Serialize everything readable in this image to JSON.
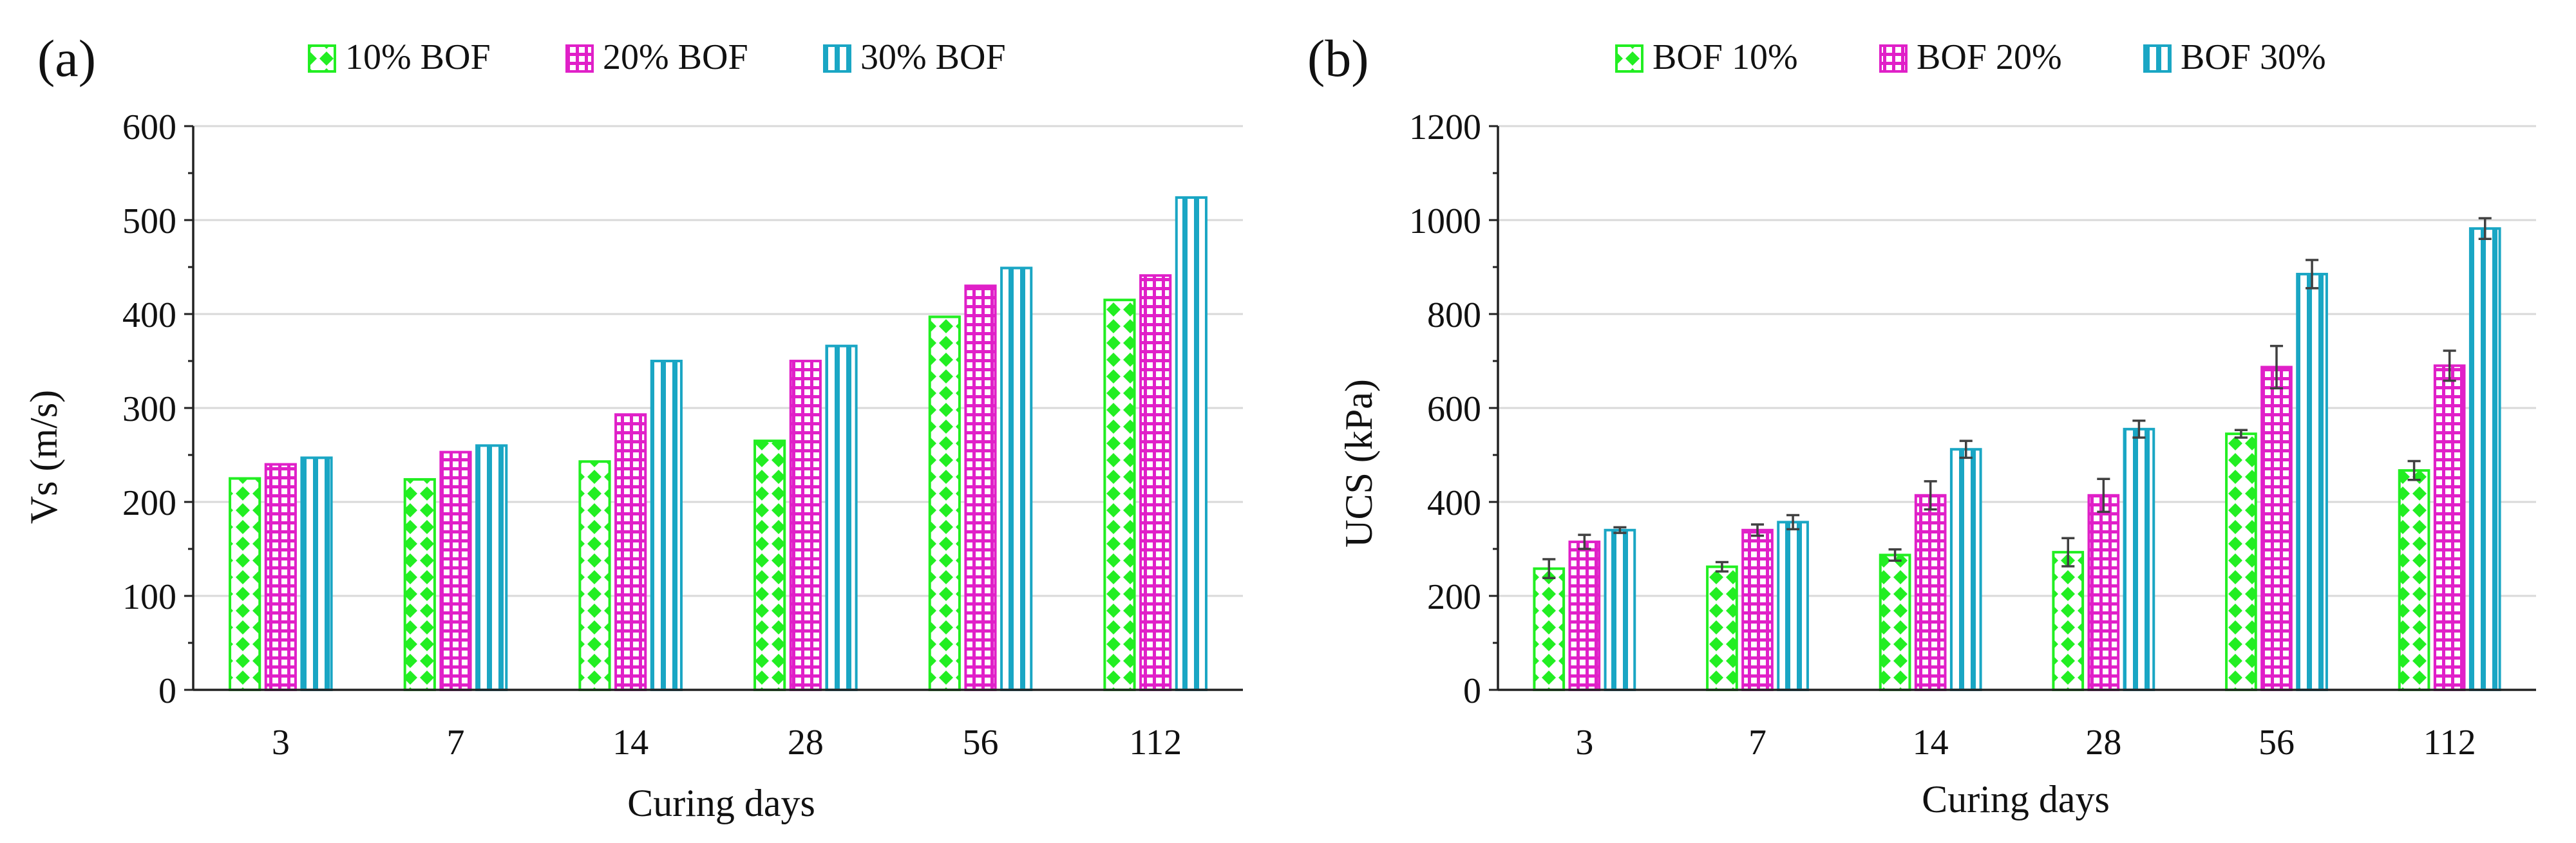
{
  "figure": {
    "panels": [
      "(a)",
      "(b)"
    ]
  },
  "colors": {
    "s10": "#22ee22",
    "s20": "#e020c8",
    "s30": "#1aa6c4"
  },
  "chart_data": [
    {
      "type": "bar",
      "panel_label": "(a)",
      "title": "",
      "xlabel": "Curing days",
      "ylabel": "Vs (m/s)",
      "categories": [
        "3",
        "7",
        "14",
        "28",
        "56",
        "112"
      ],
      "ylim": [
        0,
        600
      ],
      "yticks": [
        0,
        100,
        200,
        300,
        400,
        500,
        600
      ],
      "grid": true,
      "legend_position": "top",
      "series": [
        {
          "name": "10% BOF",
          "pattern": "diamond",
          "values": [
            225,
            224,
            243,
            265,
            397,
            415
          ]
        },
        {
          "name": "20% BOF",
          "pattern": "grid",
          "values": [
            240,
            253,
            293,
            350,
            430,
            441
          ]
        },
        {
          "name": "30% BOF",
          "pattern": "stripe",
          "values": [
            247,
            260,
            350,
            366,
            449,
            524
          ]
        }
      ]
    },
    {
      "type": "bar",
      "panel_label": "(b)",
      "title": "",
      "xlabel": "Curing days",
      "ylabel": "UCS (kPa)",
      "categories": [
        "3",
        "7",
        "14",
        "28",
        "56",
        "112"
      ],
      "ylim": [
        0,
        1200
      ],
      "yticks": [
        0,
        200,
        400,
        600,
        800,
        1000,
        1200
      ],
      "grid": true,
      "legend_position": "top",
      "series": [
        {
          "name": "BOF 10%",
          "pattern": "diamond",
          "values": [
            258,
            262,
            287,
            293,
            545,
            467
          ],
          "errors": [
            20,
            10,
            12,
            30,
            8,
            20
          ]
        },
        {
          "name": "BOF 20%",
          "pattern": "grid",
          "values": [
            315,
            340,
            414,
            414,
            687,
            690
          ],
          "errors": [
            15,
            12,
            30,
            35,
            45,
            32
          ]
        },
        {
          "name": "BOF 30%",
          "pattern": "stripe",
          "values": [
            340,
            357,
            512,
            555,
            885,
            982
          ],
          "errors": [
            6,
            15,
            18,
            18,
            30,
            22
          ]
        }
      ]
    }
  ]
}
